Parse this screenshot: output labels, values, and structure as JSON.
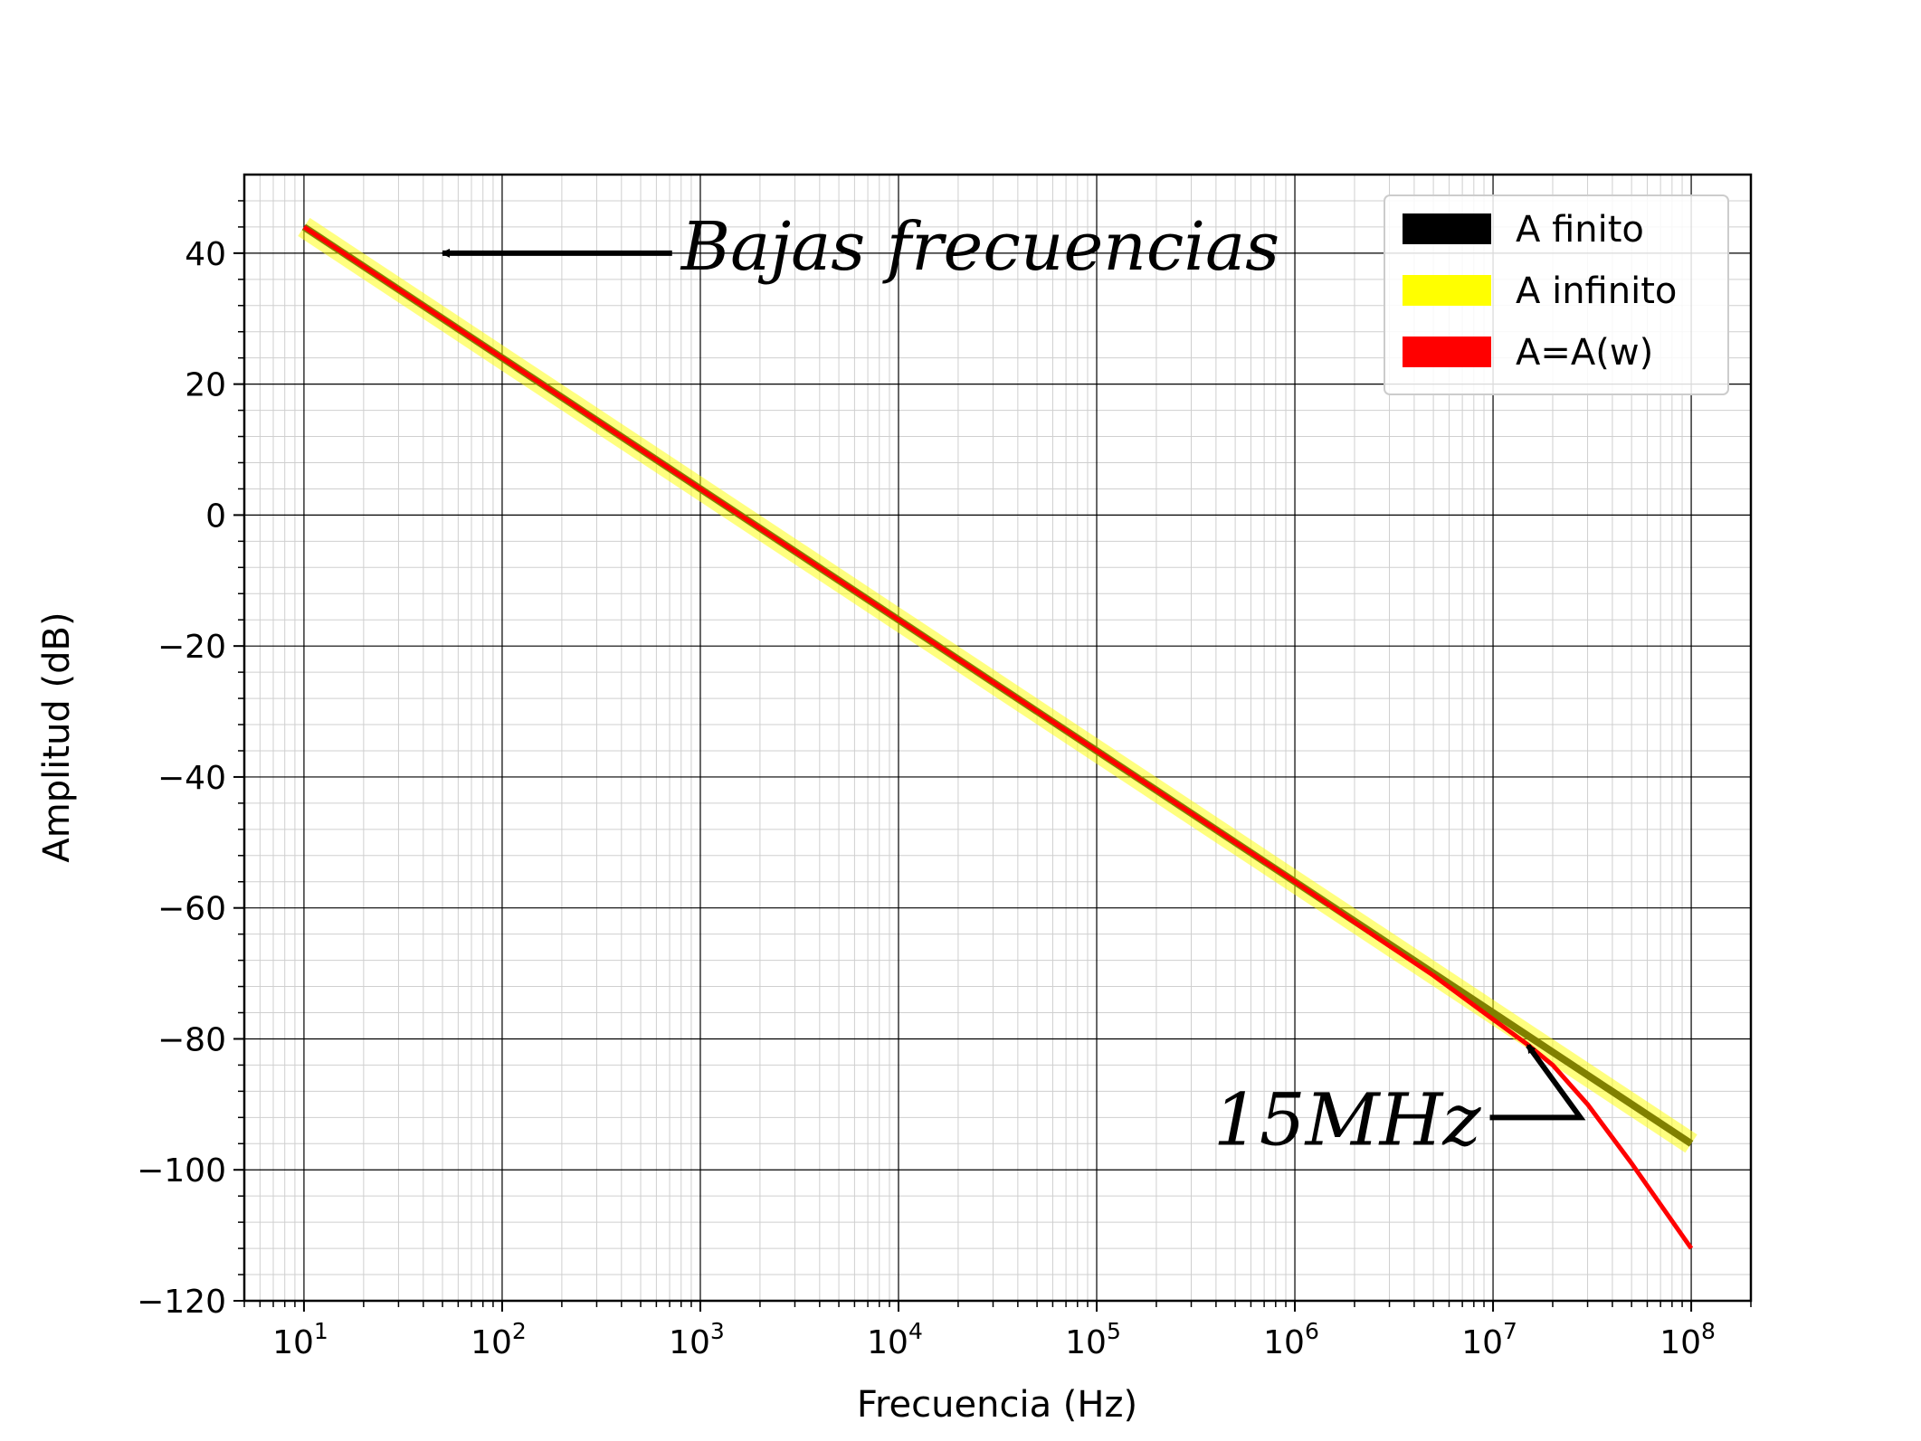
{
  "chart_data": {
    "type": "line",
    "x_scale": "log",
    "xlabel": "Frecuencia (Hz)",
    "ylabel": "Amplitud (dB)",
    "xlim": [
      5,
      200000000
    ],
    "ylim": [
      -120,
      52
    ],
    "grid": true,
    "minor_grid": true,
    "x_tick_labels": [
      {
        "base": "10",
        "exp": "1",
        "value": 10
      },
      {
        "base": "10",
        "exp": "2",
        "value": 100
      },
      {
        "base": "10",
        "exp": "3",
        "value": 1000
      },
      {
        "base": "10",
        "exp": "4",
        "value": 10000
      },
      {
        "base": "10",
        "exp": "5",
        "value": 100000
      },
      {
        "base": "10",
        "exp": "6",
        "value": 1000000
      },
      {
        "base": "10",
        "exp": "7",
        "value": 10000000
      },
      {
        "base": "10",
        "exp": "8",
        "value": 100000000
      }
    ],
    "y_ticks": [
      40,
      20,
      0,
      -20,
      -40,
      -60,
      -80,
      -100,
      -120
    ],
    "y_tick_labels": [
      "40",
      "20",
      "0",
      "−20",
      "−40",
      "−60",
      "−80",
      "−100",
      "−120"
    ],
    "legend_position": "top-right",
    "series": [
      {
        "name": "A finito",
        "color": "#000000",
        "x": [
          10,
          100,
          1000,
          10000,
          100000,
          1000000,
          10000000,
          100000000
        ],
        "y": [
          44,
          24,
          4,
          -16,
          -36,
          -56,
          -76,
          -96
        ]
      },
      {
        "name": "A infinito",
        "color": "#ffff00",
        "x": [
          10,
          100,
          1000,
          10000,
          100000,
          1000000,
          10000000,
          100000000
        ],
        "y": [
          44,
          24,
          4,
          -16,
          -36,
          -56,
          -76,
          -96
        ]
      },
      {
        "name": "A=A(w)",
        "color": "#ff0000",
        "x": [
          10,
          100,
          1000,
          10000,
          100000,
          1000000,
          3000000,
          5000000,
          10000000,
          15000000,
          20000000,
          30000000,
          50000000,
          100000000
        ],
        "y": [
          44,
          24,
          4,
          -16,
          -36,
          -56,
          -65.8,
          -70.3,
          -77,
          -80.9,
          -84,
          -90,
          -99,
          -112
        ]
      }
    ],
    "annotations": [
      {
        "text": "Bajas frecuencias",
        "text_x": 800,
        "text_y": 40,
        "arrow_to_x": 50,
        "arrow_to_y": 40
      },
      {
        "text": "15MHz",
        "text_x": 300000,
        "text_y": -92,
        "arrow_to_x": 15000000,
        "arrow_to_y": -81
      }
    ]
  }
}
